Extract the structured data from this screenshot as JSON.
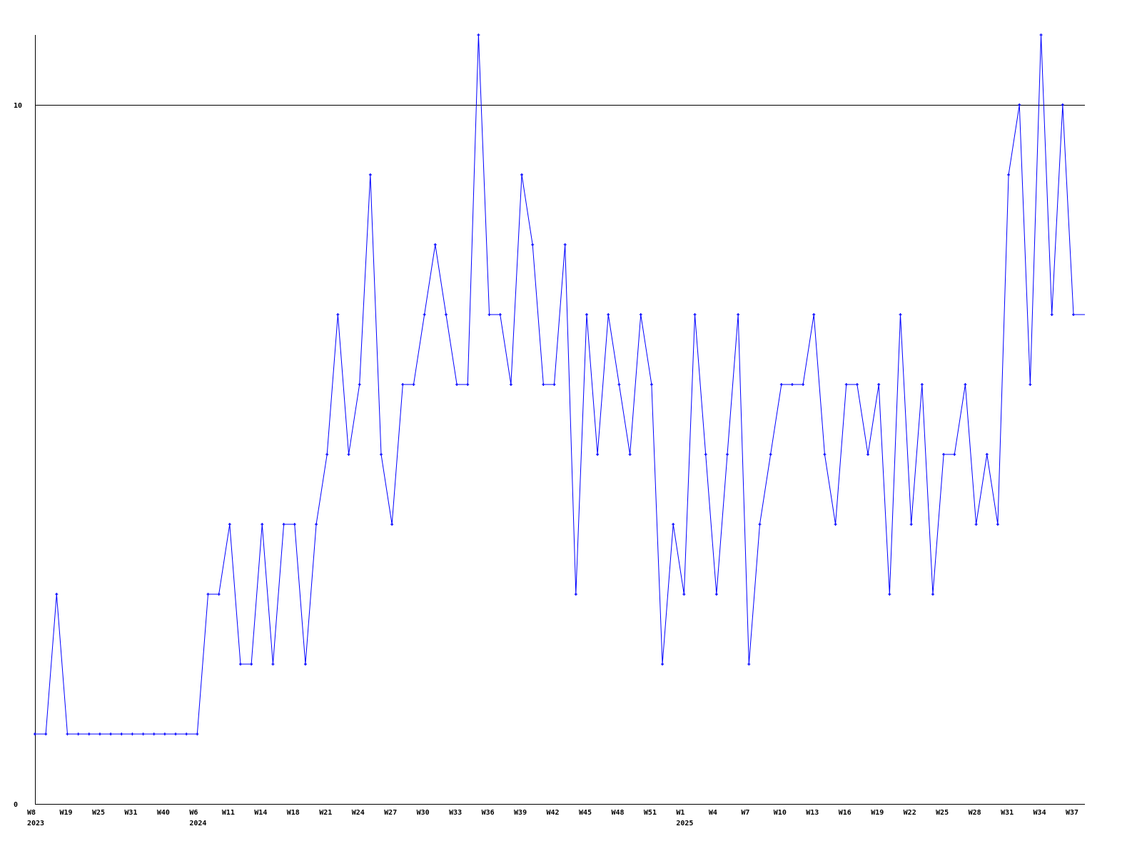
{
  "chart_data": {
    "type": "line",
    "title": "",
    "xlabel": "",
    "ylabel": "",
    "ylim": [
      0,
      11
    ],
    "yticks": [
      "0",
      "10"
    ],
    "grid_lines_at": [
      10
    ],
    "line_color": "#0000ff",
    "axis_color": "#000000",
    "x_tick_labels": [
      "W8",
      "W19",
      "W25",
      "W31",
      "W40",
      "W6",
      "W11",
      "W14",
      "W18",
      "W21",
      "W24",
      "W27",
      "W30",
      "W33",
      "W36",
      "W39",
      "W42",
      "W45",
      "W48",
      "W51",
      "W1",
      "W4",
      "W7",
      "W10",
      "W13",
      "W16",
      "W19",
      "W22",
      "W25",
      "W28",
      "W31",
      "W34",
      "W37"
    ],
    "x_tick_every": 3,
    "year_labels": [
      {
        "label": "2023",
        "tick_index": 0
      },
      {
        "label": "2024",
        "tick_index": 5
      },
      {
        "label": "2025",
        "tick_index": 20
      }
    ],
    "values": [
      1,
      1,
      3,
      1,
      1,
      1,
      1,
      1,
      1,
      1,
      1,
      1,
      1,
      1,
      1,
      1,
      3,
      3,
      4,
      2,
      2,
      4,
      2,
      4,
      4,
      2,
      4,
      5,
      7,
      5,
      6,
      9,
      5,
      4,
      6,
      6,
      7,
      8,
      7,
      6,
      6,
      11,
      7,
      7,
      6,
      9,
      8,
      6,
      6,
      8,
      3,
      7,
      5,
      7,
      6,
      5,
      7,
      6,
      2,
      4,
      3,
      7,
      5,
      3,
      5,
      7,
      2,
      4,
      5,
      6,
      6,
      6,
      7,
      5,
      4,
      6,
      6,
      5,
      6,
      3,
      7,
      4,
      6,
      3,
      5,
      5,
      6,
      4,
      5,
      4,
      9,
      10,
      6,
      11,
      7,
      10,
      7
    ]
  }
}
